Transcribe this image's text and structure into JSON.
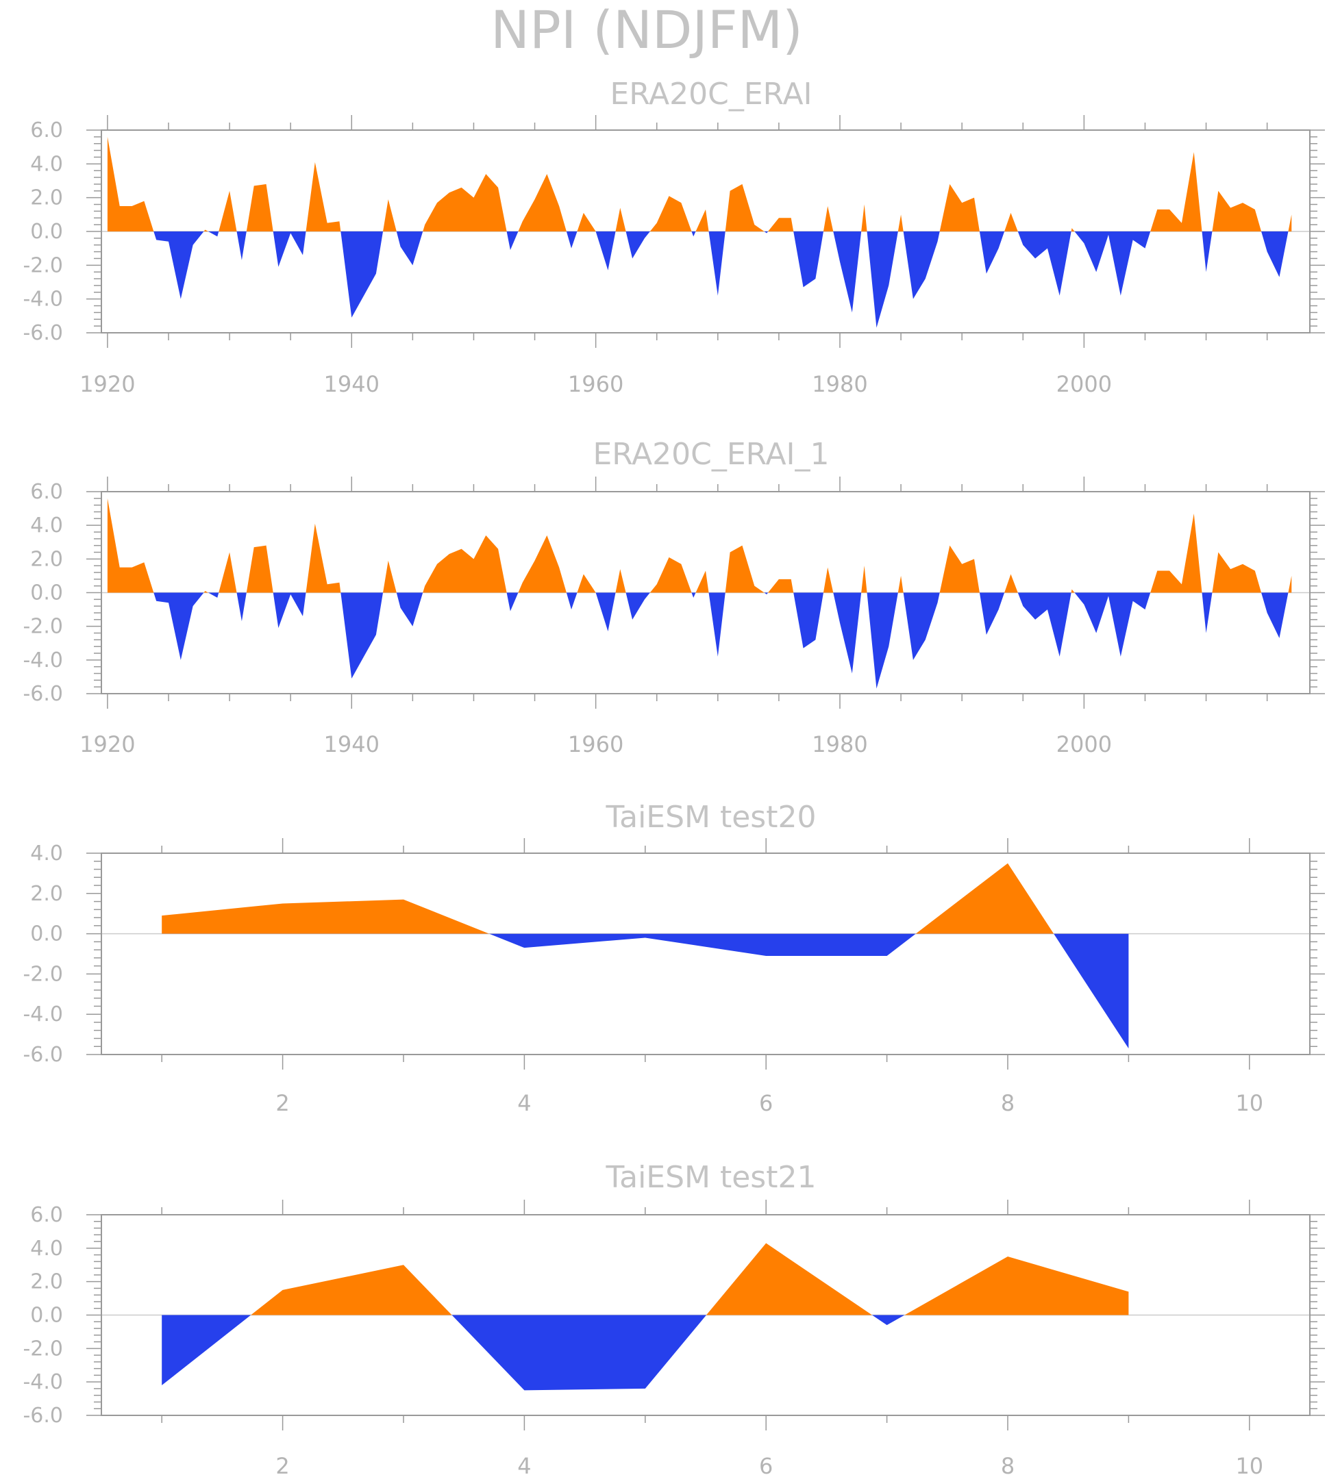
{
  "title": "NPI (NDJFM)",
  "colors": {
    "positive": "#ff7f00",
    "negative": "#2640ec",
    "axis": "#999999",
    "zero_line": "#cccccc",
    "text": "#b4b4b4"
  },
  "chart_data": [
    {
      "type": "area",
      "title": "ERA20C_ERAI",
      "xlim": [
        1919.5,
        2018.5
      ],
      "ylim": [
        -6,
        6
      ],
      "xticks": [
        1920,
        1940,
        1960,
        1980,
        2000
      ],
      "xtick_labels": [
        "1920",
        "1940",
        "1960",
        "1980",
        "2000"
      ],
      "yticks": [
        -6,
        -4,
        -2,
        0,
        2,
        4,
        6
      ],
      "ytick_labels": [
        "-6.0",
        "-4.0",
        "-2.0",
        "0.0",
        "2.0",
        "4.0",
        "6.0"
      ],
      "fill": "above zero orange, below zero blue",
      "x": [
        1920,
        1921,
        1922,
        1923,
        1924,
        1925,
        1926,
        1927,
        1928,
        1929,
        1930,
        1931,
        1932,
        1933,
        1934,
        1935,
        1936,
        1937,
        1938,
        1939,
        1940,
        1941,
        1942,
        1943,
        1944,
        1945,
        1946,
        1947,
        1948,
        1949,
        1950,
        1951,
        1952,
        1953,
        1954,
        1955,
        1956,
        1957,
        1958,
        1959,
        1960,
        1961,
        1962,
        1963,
        1964,
        1965,
        1966,
        1967,
        1968,
        1969,
        1970,
        1971,
        1972,
        1973,
        1974,
        1975,
        1976,
        1977,
        1978,
        1979,
        1980,
        1981,
        1982,
        1983,
        1984,
        1985,
        1986,
        1987,
        1988,
        1989,
        1990,
        1991,
        1992,
        1993,
        1994,
        1995,
        1996,
        1997,
        1998,
        1999,
        2000,
        2001,
        2002,
        2003,
        2004,
        2005,
        2006,
        2007,
        2008,
        2009,
        2010,
        2011,
        2012,
        2013,
        2014,
        2015,
        2016,
        2017
      ],
      "values": [
        5.6,
        1.5,
        1.5,
        1.8,
        -0.5,
        -0.6,
        -4.0,
        -0.8,
        0.1,
        -0.3,
        2.4,
        -1.7,
        2.7,
        2.8,
        -2.1,
        -0.1,
        -1.4,
        4.1,
        0.5,
        0.6,
        -5.1,
        -3.8,
        -2.5,
        1.9,
        -0.9,
        -2.0,
        0.4,
        1.7,
        2.3,
        2.6,
        2.0,
        3.4,
        2.6,
        -1.1,
        0.6,
        1.9,
        3.4,
        1.5,
        -1.0,
        1.1,
        0.0,
        -2.3,
        1.4,
        -1.6,
        -0.4,
        0.5,
        2.1,
        1.7,
        -0.3,
        1.3,
        -3.8,
        2.4,
        2.8,
        0.4,
        -0.1,
        0.8,
        0.8,
        -3.3,
        -2.8,
        1.5,
        -1.8,
        -4.8,
        1.6,
        -5.7,
        -3.2,
        1.0,
        -4.0,
        -2.8,
        -0.6,
        2.8,
        1.7,
        2.0,
        -2.5,
        -1.0,
        1.1,
        -0.8,
        -1.6,
        -1.0,
        -3.8,
        0.2,
        -0.7,
        -2.4,
        -0.2,
        -3.8,
        -0.5,
        -1.0,
        1.3,
        1.3,
        0.5,
        4.7,
        -2.4,
        2.4,
        1.4,
        1.7,
        1.3,
        -1.2,
        -2.7,
        1.0
      ]
    },
    {
      "type": "area",
      "title": "ERA20C_ERAI_1",
      "xlim": [
        1919.5,
        2018.5
      ],
      "ylim": [
        -6,
        6
      ],
      "xticks": [
        1920,
        1940,
        1960,
        1980,
        2000
      ],
      "xtick_labels": [
        "1920",
        "1940",
        "1960",
        "1980",
        "2000"
      ],
      "yticks": [
        -6,
        -4,
        -2,
        0,
        2,
        4,
        6
      ],
      "ytick_labels": [
        "-6.0",
        "-4.0",
        "-2.0",
        "0.0",
        "2.0",
        "4.0",
        "6.0"
      ],
      "fill": "above zero orange, below zero blue",
      "x": [
        1920,
        1921,
        1922,
        1923,
        1924,
        1925,
        1926,
        1927,
        1928,
        1929,
        1930,
        1931,
        1932,
        1933,
        1934,
        1935,
        1936,
        1937,
        1938,
        1939,
        1940,
        1941,
        1942,
        1943,
        1944,
        1945,
        1946,
        1947,
        1948,
        1949,
        1950,
        1951,
        1952,
        1953,
        1954,
        1955,
        1956,
        1957,
        1958,
        1959,
        1960,
        1961,
        1962,
        1963,
        1964,
        1965,
        1966,
        1967,
        1968,
        1969,
        1970,
        1971,
        1972,
        1973,
        1974,
        1975,
        1976,
        1977,
        1978,
        1979,
        1980,
        1981,
        1982,
        1983,
        1984,
        1985,
        1986,
        1987,
        1988,
        1989,
        1990,
        1991,
        1992,
        1993,
        1994,
        1995,
        1996,
        1997,
        1998,
        1999,
        2000,
        2001,
        2002,
        2003,
        2004,
        2005,
        2006,
        2007,
        2008,
        2009,
        2010,
        2011,
        2012,
        2013,
        2014,
        2015,
        2016,
        2017
      ],
      "values": [
        5.6,
        1.5,
        1.5,
        1.8,
        -0.5,
        -0.6,
        -4.0,
        -0.8,
        0.1,
        -0.3,
        2.4,
        -1.7,
        2.7,
        2.8,
        -2.1,
        -0.1,
        -1.4,
        4.1,
        0.5,
        0.6,
        -5.1,
        -3.8,
        -2.5,
        1.9,
        -0.9,
        -2.0,
        0.4,
        1.7,
        2.3,
        2.6,
        2.0,
        3.4,
        2.6,
        -1.1,
        0.6,
        1.9,
        3.4,
        1.5,
        -1.0,
        1.1,
        0.0,
        -2.3,
        1.4,
        -1.6,
        -0.4,
        0.5,
        2.1,
        1.7,
        -0.3,
        1.3,
        -3.8,
        2.4,
        2.8,
        0.4,
        -0.1,
        0.8,
        0.8,
        -3.3,
        -2.8,
        1.5,
        -1.8,
        -4.8,
        1.6,
        -5.7,
        -3.2,
        1.0,
        -4.0,
        -2.8,
        -0.6,
        2.8,
        1.7,
        2.0,
        -2.5,
        -1.0,
        1.1,
        -0.8,
        -1.6,
        -1.0,
        -3.8,
        0.2,
        -0.7,
        -2.4,
        -0.2,
        -3.8,
        -0.5,
        -1.0,
        1.3,
        1.3,
        0.5,
        4.7,
        -2.4,
        2.4,
        1.4,
        1.7,
        1.3,
        -1.2,
        -2.7,
        1.0
      ]
    },
    {
      "type": "area",
      "title": "TaiESM test20",
      "xlim": [
        0.5,
        10.5
      ],
      "ylim": [
        -6,
        4
      ],
      "xticks": [
        2,
        4,
        6,
        8,
        10
      ],
      "xtick_labels": [
        "2",
        "4",
        "6",
        "8",
        "10"
      ],
      "yticks": [
        -6,
        -4,
        -2,
        0,
        2,
        4
      ],
      "ytick_labels": [
        "-6.0",
        "-4.0",
        "-2.0",
        "0.0",
        "2.0",
        "4.0"
      ],
      "fill": "above zero orange, below zero blue",
      "x": [
        1,
        2,
        3,
        4,
        5,
        6,
        7,
        8,
        9
      ],
      "values": [
        0.9,
        1.5,
        1.7,
        -0.7,
        -0.2,
        -1.1,
        -1.1,
        3.5,
        -5.7
      ]
    },
    {
      "type": "area",
      "title": "TaiESM test21",
      "xlim": [
        0.5,
        10.5
      ],
      "ylim": [
        -6,
        6
      ],
      "xticks": [
        2,
        4,
        6,
        8,
        10
      ],
      "xtick_labels": [
        "2",
        "4",
        "6",
        "8",
        "10"
      ],
      "yticks": [
        -6,
        -4,
        -2,
        0,
        2,
        4,
        6
      ],
      "ytick_labels": [
        "-6.0",
        "-4.0",
        "-2.0",
        "0.0",
        "2.0",
        "4.0",
        "6.0"
      ],
      "fill": "above zero orange, below zero blue",
      "x": [
        1,
        2,
        3,
        4,
        5,
        6,
        7,
        8,
        9
      ],
      "values": [
        -4.2,
        1.5,
        3.0,
        -4.5,
        -4.4,
        4.3,
        -0.6,
        3.5,
        1.4
      ]
    }
  ]
}
